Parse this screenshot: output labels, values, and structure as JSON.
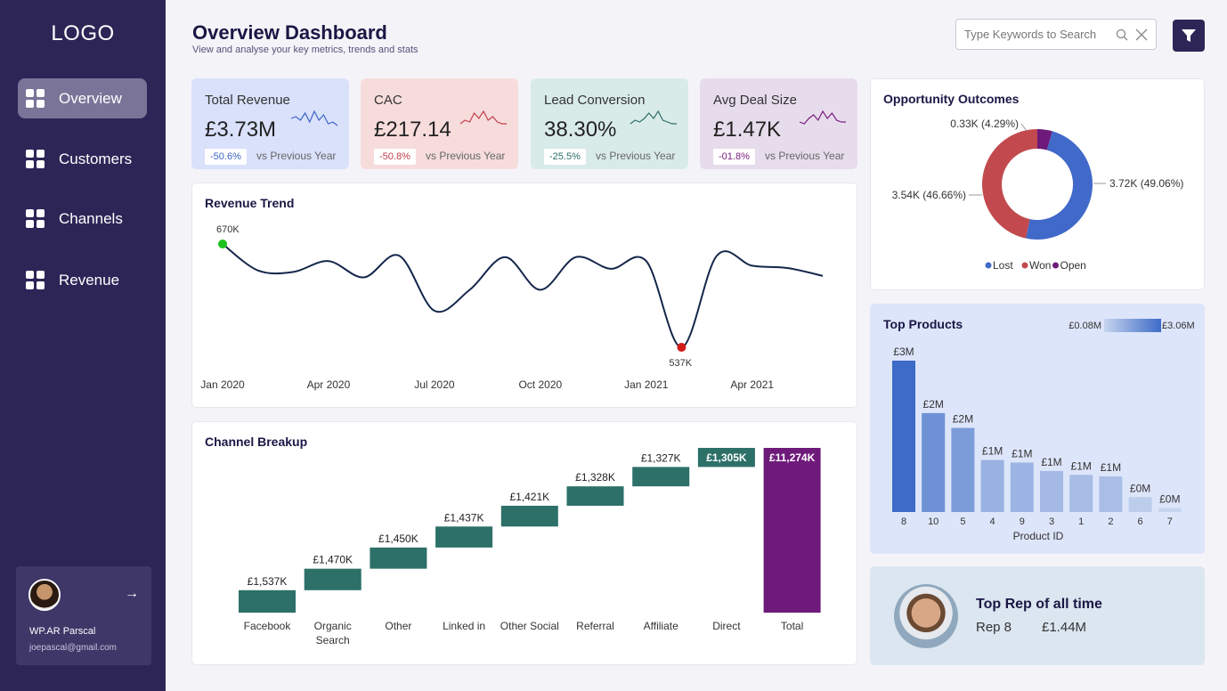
{
  "sidebar": {
    "logo": "LOGO",
    "items": [
      {
        "label": "Overview"
      },
      {
        "label": "Customers"
      },
      {
        "label": "Channels"
      },
      {
        "label": "Revenue"
      }
    ],
    "profile": {
      "name": "WP.AR Parscal",
      "email": "joepascal@gmail.com"
    }
  },
  "header": {
    "title": "Overview Dashboard",
    "subtitle": "View and analyse your key metrics, trends and stats",
    "search_placeholder": "Type Keywords to Search"
  },
  "kpis": [
    {
      "label": "Total Revenue",
      "value": "£3.73M",
      "change": "-50.6%",
      "vs": "vs Previous Year",
      "bg": "#d9e1fb",
      "accent": "#3d64c5"
    },
    {
      "label": "CAC",
      "value": "£217.14",
      "change": "-50.8%",
      "vs": "vs Previous Year",
      "bg": "#f7dcdc",
      "accent": "#c0404a"
    },
    {
      "label": "Lead Conversion",
      "value": "38.30%",
      "change": "-25.5%",
      "vs": "vs Previous Year",
      "bg": "#d9ebe9",
      "accent": "#2c7068"
    },
    {
      "label": "Avg Deal Size",
      "value": "£1.47K",
      "change": "-01.8%",
      "vs": "vs Previous Year",
      "bg": "#e7dcec",
      "accent": "#7a1f80"
    }
  ],
  "revenue_trend": {
    "title": "Revenue Trend",
    "max_label": "670K",
    "min_label": "537K",
    "x_ticks": [
      "Jan 2020",
      "Apr 2020",
      "Jul 2020",
      "Oct 2020",
      "Jan 2021",
      "Apr 2021"
    ]
  },
  "channel_breakup": {
    "title": "Channel Breakup"
  },
  "opportunity": {
    "title": "Opportunity Outcomes",
    "legend": [
      "Lost",
      "Won",
      "Open"
    ]
  },
  "top_products": {
    "title": "Top Products",
    "legend_min": "£0.08M",
    "legend_max": "£3.06M",
    "xlabel": "Product ID"
  },
  "top_rep": {
    "title": "Top Rep of all time",
    "name": "Rep 8",
    "value": "£1.44M"
  },
  "chart_data": [
    {
      "type": "line",
      "title": "Revenue Trend",
      "x": [
        "Jan 2020",
        "Feb 2020",
        "Mar 2020",
        "Apr 2020",
        "May 2020",
        "Jun 2020",
        "Jul 2020",
        "Aug 2020",
        "Sep 2020",
        "Oct 2020",
        "Nov 2020",
        "Dec 2020",
        "Jan 2021",
        "Feb 2021",
        "Mar 2021",
        "Apr 2021",
        "May 2021",
        "Jun 2021"
      ],
      "values": [
        670,
        636,
        634,
        648,
        627,
        655,
        584,
        611,
        653,
        611,
        653,
        638,
        648,
        537,
        655,
        642,
        639,
        629
      ],
      "annotations": [
        {
          "label": "670K",
          "x": "Jan 2020"
        },
        {
          "label": "537K",
          "x": "Feb 2021"
        }
      ]
    },
    {
      "type": "bar",
      "title": "Channel Breakup",
      "categories": [
        "Facebook",
        "Organic Search",
        "Other",
        "Linked in",
        "Other Social",
        "Referral",
        "Affiliate",
        "Direct",
        "Total"
      ],
      "values": [
        1537,
        1470,
        1450,
        1437,
        1421,
        1328,
        1327,
        1305,
        11274
      ],
      "labels": [
        "£1,537K",
        "£1,470K",
        "£1,450K",
        "£1,437K",
        "£1,421K",
        "£1,328K",
        "£1,327K",
        "£1,305K",
        "£11,274K"
      ],
      "colors": {
        "step": "#2c7068",
        "total": "#6e1a7a"
      }
    },
    {
      "type": "pie",
      "title": "Opportunity Outcomes",
      "categories": [
        "Lost",
        "Won",
        "Open"
      ],
      "values": [
        3.72,
        3.54,
        0.33
      ],
      "labels": [
        "3.72K (49.06%)",
        "3.54K (46.66%)",
        "0.33K (4.29%)"
      ],
      "percent": [
        49.06,
        46.66,
        4.29
      ],
      "colors": [
        "#4169c9",
        "#c24a4e",
        "#6e1a7a"
      ],
      "legend": "bottom"
    },
    {
      "type": "bar",
      "title": "Top Products",
      "categories": [
        "8",
        "10",
        "5",
        "4",
        "9",
        "3",
        "1",
        "2",
        "6",
        "7"
      ],
      "values": [
        3.06,
        2.0,
        1.7,
        1.05,
        1.0,
        0.83,
        0.75,
        0.72,
        0.3,
        0.08
      ],
      "labels": [
        "£3M",
        "£2M",
        "£2M",
        "£1M",
        "£1M",
        "£1M",
        "£1M",
        "£1M",
        "£0M",
        "£0M"
      ],
      "xlabel": "Product ID",
      "color_scale": [
        "#c6d5ef",
        "#3d6bc7"
      ]
    }
  ]
}
